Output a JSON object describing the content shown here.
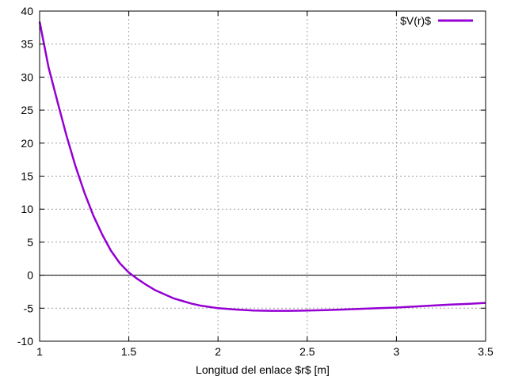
{
  "chart_data": {
    "type": "line",
    "xlabel": "Longitud del enlace $r$ [m]",
    "ylabel": "",
    "xlim": [
      1,
      3.5
    ],
    "ylim": [
      -10,
      40
    ],
    "xticks": [
      1,
      1.5,
      2,
      2.5,
      3,
      3.5
    ],
    "xtick_labels": [
      "1",
      "1.5",
      "2",
      "2.5",
      "3",
      "3.5"
    ],
    "yticks": [
      -10,
      -5,
      0,
      5,
      10,
      15,
      20,
      25,
      30,
      35,
      40
    ],
    "ytick_labels": [
      "-10",
      "-5",
      "0",
      "5",
      "10",
      "15",
      "20",
      "25",
      "30",
      "35",
      "40"
    ],
    "grid": true,
    "zero_line": true,
    "legend_position": "top-right",
    "series": [
      {
        "name": "$V(r)$",
        "color": "#9400d3",
        "x": [
          1.0,
          1.05,
          1.1,
          1.15,
          1.2,
          1.25,
          1.3,
          1.35,
          1.4,
          1.45,
          1.5,
          1.55,
          1.6,
          1.65,
          1.7,
          1.75,
          1.8,
          1.85,
          1.9,
          1.95,
          2.0,
          2.1,
          2.2,
          2.3,
          2.4,
          2.5,
          2.6,
          2.7,
          2.8,
          2.9,
          3.0,
          3.1,
          3.2,
          3.3,
          3.4,
          3.5
        ],
        "y": [
          38.4,
          31.5,
          26.3,
          21.2,
          16.6,
          12.6,
          9.1,
          6.2,
          3.7,
          1.8,
          0.4,
          -0.6,
          -1.5,
          -2.3,
          -2.9,
          -3.5,
          -3.9,
          -4.3,
          -4.6,
          -4.8,
          -5.0,
          -5.2,
          -5.35,
          -5.4,
          -5.4,
          -5.35,
          -5.3,
          -5.2,
          -5.1,
          -5.0,
          -4.9,
          -4.75,
          -4.6,
          -4.45,
          -4.35,
          -4.2
        ]
      }
    ]
  }
}
